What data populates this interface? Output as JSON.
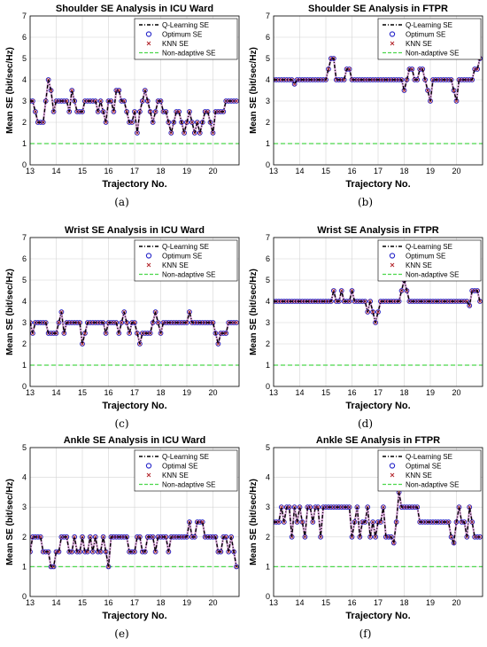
{
  "colors": {
    "qlearning": "#000000",
    "optimum": "#2323c8",
    "knn": "#b4282d",
    "nonadaptive": "#4cd74c",
    "grid": "#d4d4d4",
    "background": "#ffffff"
  },
  "chart_data": [
    {
      "type": "line",
      "caption": "(a)",
      "title": "Shoulder SE Analysis in ICU Ward",
      "xlabel": "Trajectory No.",
      "ylabel": "Mean SE (bit/sec/Hz)",
      "xlim": [
        13,
        21
      ],
      "ylim": [
        0,
        7
      ],
      "xticks": [
        "13",
        "14",
        "15",
        "16",
        "17",
        "18",
        "19",
        "20"
      ],
      "yticks": [
        "0",
        "1",
        "2",
        "3",
        "4",
        "5",
        "6",
        "7"
      ],
      "grid": true,
      "legend_position": "top-right",
      "legend": [
        "Q-Learning SE",
        "Optimum SE",
        "KNN SE",
        "Non-adaptive SE"
      ],
      "nonadaptive": 1,
      "x": [
        13.0,
        13.1,
        13.2,
        13.3,
        13.4,
        13.5,
        13.6,
        13.7,
        13.8,
        13.9,
        14.0,
        14.1,
        14.2,
        14.3,
        14.4,
        14.5,
        14.6,
        14.7,
        14.8,
        14.9,
        15.0,
        15.1,
        15.2,
        15.3,
        15.4,
        15.5,
        15.6,
        15.7,
        15.8,
        15.9,
        16.0,
        16.1,
        16.2,
        16.3,
        16.4,
        16.5,
        16.6,
        16.7,
        16.8,
        16.9,
        17.0,
        17.1,
        17.2,
        17.3,
        17.4,
        17.5,
        17.6,
        17.7,
        17.8,
        17.9,
        18.0,
        18.1,
        18.2,
        18.3,
        18.4,
        18.5,
        18.6,
        18.7,
        18.8,
        18.9,
        19.0,
        19.1,
        19.2,
        19.3,
        19.4,
        19.5,
        19.6,
        19.7,
        19.8,
        19.9,
        20.0,
        20.1,
        20.2,
        20.3,
        20.4,
        20.5,
        20.6,
        20.7,
        20.8,
        20.9
      ],
      "y": [
        3,
        3,
        2.5,
        2,
        2,
        2,
        3,
        4,
        3.5,
        2.5,
        3,
        3,
        3,
        3,
        3,
        2.5,
        3.5,
        3,
        2.5,
        2.5,
        2.5,
        3,
        3,
        3,
        3,
        3,
        2.5,
        3,
        2.5,
        2,
        3,
        3,
        2.5,
        3.5,
        3.5,
        3,
        3,
        2.5,
        2,
        2,
        2.5,
        1.5,
        2.5,
        3,
        3.5,
        3,
        2.5,
        2,
        2.5,
        3,
        3,
        2.5,
        2.5,
        2,
        1.5,
        2,
        2.5,
        2.5,
        2,
        1.5,
        2,
        2.5,
        2,
        1.5,
        2,
        1.5,
        2,
        2.5,
        2.5,
        2,
        1.5,
        2.5,
        2.5,
        2.5,
        2.5,
        3,
        3,
        3,
        3,
        3
      ]
    },
    {
      "type": "line",
      "caption": "(b)",
      "title": "Shoulder SE Analysis in FTPR",
      "xlabel": "Trajectory No.",
      "ylabel": "Mean SE (bit/sec/Hz)",
      "xlim": [
        13,
        21
      ],
      "ylim": [
        0,
        7
      ],
      "xticks": [
        "13",
        "14",
        "15",
        "16",
        "17",
        "18",
        "19",
        "20"
      ],
      "yticks": [
        "0",
        "1",
        "2",
        "3",
        "4",
        "5",
        "6",
        "7"
      ],
      "grid": true,
      "legend_position": "top-right",
      "legend": [
        "Q-Learning SE",
        "Optimum SE",
        "KNN SE",
        "Non-adaptive SE"
      ],
      "nonadaptive": 1,
      "x": [
        13.0,
        13.1,
        13.2,
        13.3,
        13.4,
        13.5,
        13.6,
        13.7,
        13.8,
        13.9,
        14.0,
        14.1,
        14.2,
        14.3,
        14.4,
        14.5,
        14.6,
        14.7,
        14.8,
        14.9,
        15.0,
        15.1,
        15.2,
        15.3,
        15.4,
        15.5,
        15.6,
        15.7,
        15.8,
        15.9,
        16.0,
        16.1,
        16.2,
        16.3,
        16.4,
        16.5,
        16.6,
        16.7,
        16.8,
        16.9,
        17.0,
        17.1,
        17.2,
        17.3,
        17.4,
        17.5,
        17.6,
        17.7,
        17.8,
        17.9,
        18.0,
        18.1,
        18.2,
        18.3,
        18.4,
        18.5,
        18.6,
        18.7,
        18.8,
        18.9,
        19.0,
        19.1,
        19.2,
        19.3,
        19.4,
        19.5,
        19.6,
        19.7,
        19.8,
        19.9,
        20.0,
        20.1,
        20.2,
        20.3,
        20.4,
        20.5,
        20.6,
        20.7,
        20.8,
        20.9
      ],
      "y": [
        4,
        4,
        4,
        4,
        4,
        4,
        4,
        4,
        3.8,
        4,
        4,
        4,
        4,
        4,
        4,
        4,
        4,
        4,
        4,
        4,
        4,
        4.5,
        5,
        5,
        4,
        4,
        4,
        4,
        4.5,
        4.5,
        4,
        4,
        4,
        4,
        4,
        4,
        4,
        4,
        4,
        4,
        4,
        4,
        4,
        4,
        4,
        4,
        4,
        4,
        4,
        4,
        3.5,
        4,
        4.5,
        4.5,
        4,
        4,
        4.5,
        4.5,
        4,
        3.5,
        3,
        4,
        4,
        4,
        4,
        4,
        4,
        4,
        4,
        3.5,
        3,
        4,
        4,
        4,
        4,
        4,
        4,
        4.5,
        4.5,
        5
      ]
    },
    {
      "type": "line",
      "caption": "(c)",
      "title": "Wrist SE Analysis in ICU Ward",
      "xlabel": "Trajectory No.",
      "ylabel": "Mean SE (bit/sec/Hz)",
      "xlim": [
        13,
        21
      ],
      "ylim": [
        0,
        7
      ],
      "xticks": [
        "13",
        "14",
        "15",
        "16",
        "17",
        "18",
        "19",
        "20"
      ],
      "yticks": [
        "0",
        "1",
        "2",
        "3",
        "4",
        "5",
        "6",
        "7"
      ],
      "grid": true,
      "legend_position": "top-right",
      "legend": [
        "Q-Learning SE",
        "Optimum SE",
        "KNN SE",
        "Non-adaptive SE"
      ],
      "nonadaptive": 1,
      "x": [
        13.0,
        13.1,
        13.2,
        13.3,
        13.4,
        13.5,
        13.6,
        13.7,
        13.8,
        13.9,
        14.0,
        14.1,
        14.2,
        14.3,
        14.4,
        14.5,
        14.6,
        14.7,
        14.8,
        14.9,
        15.0,
        15.1,
        15.2,
        15.3,
        15.4,
        15.5,
        15.6,
        15.7,
        15.8,
        15.9,
        16.0,
        16.1,
        16.2,
        16.3,
        16.4,
        16.5,
        16.6,
        16.7,
        16.8,
        16.9,
        17.0,
        17.1,
        17.2,
        17.3,
        17.4,
        17.5,
        17.6,
        17.7,
        17.8,
        17.9,
        18.0,
        18.1,
        18.2,
        18.3,
        18.4,
        18.5,
        18.6,
        18.7,
        18.8,
        18.9,
        19.0,
        19.1,
        19.2,
        19.3,
        19.4,
        19.5,
        19.6,
        19.7,
        19.8,
        19.9,
        20.0,
        20.1,
        20.2,
        20.3,
        20.4,
        20.5,
        20.6,
        20.7,
        20.8,
        20.9
      ],
      "y": [
        3,
        2.5,
        3,
        3,
        3,
        3,
        3,
        2.5,
        2.5,
        2.5,
        2.5,
        3,
        3.5,
        2.5,
        3,
        3,
        3,
        3,
        3,
        3,
        2,
        2.5,
        3,
        3,
        3,
        3,
        3,
        3,
        3,
        2.5,
        3,
        3,
        3,
        3,
        2.5,
        3,
        3.5,
        3,
        2.5,
        3,
        3,
        2.5,
        2,
        2.5,
        2.5,
        2.5,
        2.5,
        3,
        3.5,
        3,
        2.5,
        3,
        3,
        3,
        3,
        3,
        3,
        3,
        3,
        3,
        3,
        3.5,
        3,
        3,
        3,
        3,
        3,
        3,
        3,
        3,
        3,
        2.5,
        2,
        2.5,
        2.5,
        2.5,
        3,
        3,
        3,
        3
      ]
    },
    {
      "type": "line",
      "caption": "(d)",
      "title": "Wrist SE Analysis in FTPR",
      "xlabel": "Trajectory No.",
      "ylabel": "Mean SE (bit/sec/Hz)",
      "xlim": [
        13,
        21
      ],
      "ylim": [
        0,
        7
      ],
      "xticks": [
        "13",
        "14",
        "15",
        "16",
        "17",
        "18",
        "19",
        "20"
      ],
      "yticks": [
        "0",
        "1",
        "2",
        "3",
        "4",
        "5",
        "6",
        "7"
      ],
      "grid": true,
      "legend_position": "top-right",
      "legend": [
        "Q-Learning SE",
        "Optimum SE",
        "KNN SE",
        "Non-adaptive SE"
      ],
      "nonadaptive": 1,
      "x": [
        13.0,
        13.1,
        13.2,
        13.3,
        13.4,
        13.5,
        13.6,
        13.7,
        13.8,
        13.9,
        14.0,
        14.1,
        14.2,
        14.3,
        14.4,
        14.5,
        14.6,
        14.7,
        14.8,
        14.9,
        15.0,
        15.1,
        15.2,
        15.3,
        15.4,
        15.5,
        15.6,
        15.7,
        15.8,
        15.9,
        16.0,
        16.1,
        16.2,
        16.3,
        16.4,
        16.5,
        16.6,
        16.7,
        16.8,
        16.9,
        17.0,
        17.1,
        17.2,
        17.3,
        17.4,
        17.5,
        17.6,
        17.7,
        17.8,
        17.9,
        18.0,
        18.1,
        18.2,
        18.3,
        18.4,
        18.5,
        18.6,
        18.7,
        18.8,
        18.9,
        19.0,
        19.1,
        19.2,
        19.3,
        19.4,
        19.5,
        19.6,
        19.7,
        19.8,
        19.9,
        20.0,
        20.1,
        20.2,
        20.3,
        20.4,
        20.5,
        20.6,
        20.7,
        20.8,
        20.9
      ],
      "y": [
        4,
        4,
        4,
        4,
        4,
        4,
        4,
        4,
        4,
        4,
        4,
        4,
        4,
        4,
        4,
        4,
        4,
        4,
        4,
        4,
        4,
        4,
        4,
        4.5,
        4,
        4,
        4.5,
        4,
        4,
        4,
        4.5,
        4,
        4,
        4,
        4,
        4,
        3.5,
        4,
        3.5,
        3,
        3.5,
        4,
        4,
        4,
        4,
        4,
        4,
        4,
        4,
        4.5,
        5,
        4.5,
        4,
        4,
        4,
        4,
        4,
        4,
        4,
        4,
        4,
        4,
        4,
        4,
        4,
        4,
        4,
        4,
        4,
        4,
        4,
        4,
        4,
        4,
        4,
        3.8,
        4.5,
        4.5,
        4.5,
        4
      ]
    },
    {
      "type": "line",
      "caption": "(e)",
      "title": "Ankle SE Analysis in ICU Ward",
      "xlabel": "Trajectory No.",
      "ylabel": "Mean SE (bit/sec/Hz)",
      "xlim": [
        13,
        21
      ],
      "ylim": [
        0,
        5
      ],
      "xticks": [
        "13",
        "14",
        "15",
        "16",
        "17",
        "18",
        "19",
        "20"
      ],
      "yticks": [
        "0",
        "1",
        "2",
        "3",
        "4",
        "5"
      ],
      "grid": true,
      "legend_position": "top-right",
      "legend": [
        "Q-Learning SE",
        "Optimal SE",
        "KNN SE",
        "Non-adaptive SE"
      ],
      "nonadaptive": 1,
      "x": [
        13.0,
        13.1,
        13.2,
        13.3,
        13.4,
        13.5,
        13.6,
        13.7,
        13.8,
        13.9,
        14.0,
        14.1,
        14.2,
        14.3,
        14.4,
        14.5,
        14.6,
        14.7,
        14.8,
        14.9,
        15.0,
        15.1,
        15.2,
        15.3,
        15.4,
        15.5,
        15.6,
        15.7,
        15.8,
        15.9,
        16.0,
        16.1,
        16.2,
        16.3,
        16.4,
        16.5,
        16.6,
        16.7,
        16.8,
        16.9,
        17.0,
        17.1,
        17.2,
        17.3,
        17.4,
        17.5,
        17.6,
        17.7,
        17.8,
        17.9,
        18.0,
        18.1,
        18.2,
        18.3,
        18.4,
        18.5,
        18.6,
        18.7,
        18.8,
        18.9,
        19.0,
        19.1,
        19.2,
        19.3,
        19.4,
        19.5,
        19.6,
        19.7,
        19.8,
        19.9,
        20.0,
        20.1,
        20.2,
        20.3,
        20.4,
        20.5,
        20.6,
        20.7,
        20.8,
        20.9
      ],
      "y": [
        1.5,
        2,
        2,
        2,
        2,
        1.5,
        1.5,
        1.5,
        1,
        1,
        1.5,
        1.5,
        2,
        2,
        2,
        1.5,
        1.5,
        2,
        1.5,
        1.5,
        2,
        1.5,
        1.5,
        2,
        1.5,
        2,
        1.5,
        1.5,
        2,
        1.5,
        1,
        2,
        2,
        2,
        2,
        2,
        2,
        2,
        1.5,
        1.5,
        1.5,
        2,
        2,
        1.5,
        1.5,
        2,
        2,
        2,
        1.5,
        2,
        2,
        2,
        2,
        1.5,
        2,
        2,
        2,
        2,
        2,
        2,
        2,
        2.5,
        2,
        2,
        2.5,
        2.5,
        2.5,
        2,
        2,
        2,
        2,
        2,
        1.5,
        1.5,
        2,
        2,
        1.5,
        2,
        1.5,
        1
      ]
    },
    {
      "type": "line",
      "caption": "(f)",
      "title": "Ankle SE Analysis in FTPR",
      "xlabel": "Trajectory No.",
      "ylabel": "Mean SE (bit/sec/Hz)",
      "xlim": [
        13,
        21
      ],
      "ylim": [
        0,
        5
      ],
      "xticks": [
        "13",
        "14",
        "15",
        "16",
        "17",
        "18",
        "19",
        "20"
      ],
      "yticks": [
        "0",
        "1",
        "2",
        "3",
        "4",
        "5"
      ],
      "grid": true,
      "legend_position": "top-right",
      "legend": [
        "Q-Learning SE",
        "Optimal SE",
        "KNN SE",
        "Non-adaptive SE"
      ],
      "nonadaptive": 1,
      "x": [
        13.0,
        13.1,
        13.2,
        13.3,
        13.4,
        13.5,
        13.6,
        13.7,
        13.8,
        13.9,
        14.0,
        14.1,
        14.2,
        14.3,
        14.4,
        14.5,
        14.6,
        14.7,
        14.8,
        14.9,
        15.0,
        15.1,
        15.2,
        15.3,
        15.4,
        15.5,
        15.6,
        15.7,
        15.8,
        15.9,
        16.0,
        16.1,
        16.2,
        16.3,
        16.4,
        16.5,
        16.6,
        16.7,
        16.8,
        16.9,
        17.0,
        17.1,
        17.2,
        17.3,
        17.4,
        17.5,
        17.6,
        17.7,
        17.8,
        17.9,
        18.0,
        18.1,
        18.2,
        18.3,
        18.4,
        18.5,
        18.6,
        18.7,
        18.8,
        18.9,
        19.0,
        19.1,
        19.2,
        19.3,
        19.4,
        19.5,
        19.6,
        19.7,
        19.8,
        19.9,
        20.0,
        20.1,
        20.2,
        20.3,
        20.4,
        20.5,
        20.6,
        20.7,
        20.8,
        20.9
      ],
      "y": [
        2.5,
        2.5,
        2.5,
        3,
        2.5,
        3,
        3,
        2,
        3,
        2.5,
        3,
        2.5,
        2,
        3,
        3,
        2.5,
        3,
        3,
        2,
        3,
        3,
        3,
        3,
        3,
        3,
        3,
        3,
        3,
        3,
        3,
        2,
        2.5,
        3,
        2,
        2.5,
        2.5,
        3,
        2,
        2.5,
        2,
        2.5,
        2.5,
        3,
        2,
        2,
        2,
        1.8,
        2.5,
        3.5,
        3,
        3,
        3,
        3,
        3,
        3,
        3,
        2.5,
        2.5,
        2.5,
        2.5,
        2.5,
        2.5,
        2.5,
        2.5,
        2.5,
        2.5,
        2.5,
        2.5,
        2,
        1.8,
        2.5,
        3,
        2.5,
        2.5,
        2,
        3,
        2.5,
        2,
        2,
        2
      ]
    }
  ]
}
